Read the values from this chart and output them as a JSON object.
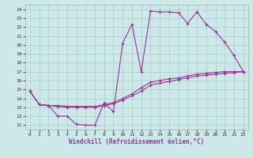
{
  "xlabel": "Windchill (Refroidissement éolien,°C)",
  "xlim": [
    -0.5,
    23.5
  ],
  "ylim": [
    10.5,
    24.5
  ],
  "xticks": [
    0,
    1,
    2,
    3,
    4,
    5,
    6,
    7,
    8,
    9,
    10,
    11,
    12,
    13,
    14,
    15,
    16,
    17,
    18,
    19,
    20,
    21,
    22,
    23
  ],
  "yticks": [
    11,
    12,
    13,
    14,
    15,
    16,
    17,
    18,
    19,
    20,
    21,
    22,
    23,
    24
  ],
  "bg_color": "#cce8e8",
  "grid_color": "#aacccc",
  "line_color": "#993399",
  "line1_x": [
    0,
    1,
    2,
    3,
    4,
    5,
    6,
    7,
    8,
    9,
    10,
    11,
    12,
    13,
    14,
    15,
    16,
    17,
    18,
    19,
    20,
    21,
    22,
    23
  ],
  "line1_y": [
    14.8,
    13.3,
    13.2,
    12.0,
    12.0,
    11.1,
    11.0,
    11.0,
    13.5,
    12.5,
    20.2,
    22.3,
    17.0,
    23.8,
    23.7,
    23.7,
    23.6,
    22.4,
    23.7,
    22.3,
    21.5,
    20.3,
    18.8,
    17.0
  ],
  "line2_x": [
    0,
    1,
    2,
    3,
    4,
    5,
    6,
    7,
    8,
    9,
    10,
    11,
    12,
    13,
    14,
    15,
    16,
    17,
    18,
    19,
    20,
    21,
    22,
    23
  ],
  "line2_y": [
    14.8,
    13.3,
    13.2,
    13.2,
    13.1,
    13.1,
    13.1,
    13.1,
    13.3,
    13.5,
    14.0,
    14.5,
    15.2,
    15.8,
    16.0,
    16.2,
    16.3,
    16.5,
    16.7,
    16.8,
    16.9,
    17.0,
    17.0,
    17.0
  ],
  "line3_x": [
    0,
    1,
    2,
    3,
    4,
    5,
    6,
    7,
    8,
    9,
    10,
    11,
    12,
    13,
    14,
    15,
    16,
    17,
    18,
    19,
    20,
    21,
    22,
    23
  ],
  "line3_y": [
    14.8,
    13.3,
    13.2,
    13.1,
    13.0,
    13.0,
    13.0,
    13.0,
    13.2,
    13.4,
    13.8,
    14.3,
    14.8,
    15.5,
    15.7,
    15.9,
    16.1,
    16.3,
    16.5,
    16.6,
    16.7,
    16.8,
    16.9,
    17.0
  ]
}
